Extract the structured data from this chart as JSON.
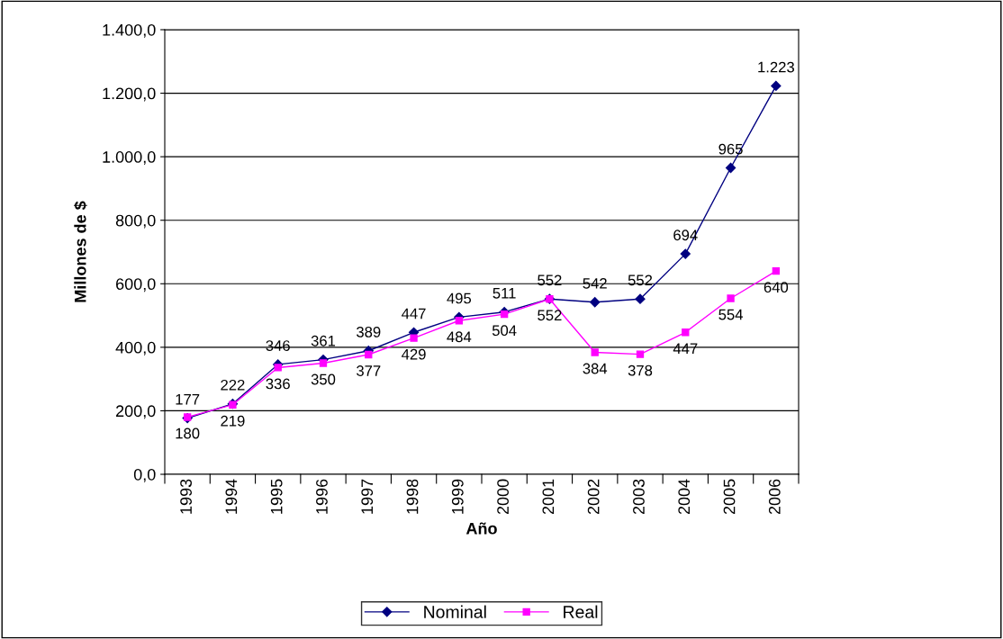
{
  "chart_data": {
    "type": "line",
    "xlabel": "Año",
    "ylabel": "Millones de $",
    "categories": [
      "1993",
      "1994",
      "1995",
      "1996",
      "1997",
      "1998",
      "1999",
      "2000",
      "2001",
      "2002",
      "2003",
      "2004",
      "2005",
      "2006"
    ],
    "series": [
      {
        "name": "Nominal",
        "color": "#000080",
        "marker": "diamond",
        "values": [
          177,
          222,
          346,
          361,
          389,
          447,
          495,
          511,
          552,
          542,
          552,
          694,
          965,
          1223
        ],
        "value_labels": [
          "177",
          "222",
          "346",
          "361",
          "389",
          "447",
          "495",
          "511",
          "552",
          "542",
          "552",
          "694",
          "965",
          "1.223"
        ]
      },
      {
        "name": "Real",
        "color": "#ff00ff",
        "marker": "square",
        "values": [
          180,
          219,
          336,
          350,
          377,
          429,
          484,
          504,
          552,
          384,
          378,
          447,
          554,
          640
        ],
        "value_labels": [
          "180",
          "219",
          "336",
          "350",
          "377",
          "429",
          "484",
          "504",
          "552",
          "384",
          "378",
          "447",
          "554",
          "640"
        ]
      }
    ],
    "ylim": [
      0,
      1400
    ],
    "yticks": [
      {
        "value": 0,
        "label": "0,0"
      },
      {
        "value": 200,
        "label": "200,0"
      },
      {
        "value": 400,
        "label": "400,0"
      },
      {
        "value": 600,
        "label": "600,0"
      },
      {
        "value": 800,
        "label": "800,0"
      },
      {
        "value": 1000,
        "label": "1.000,0"
      },
      {
        "value": 1200,
        "label": "1.200,0"
      },
      {
        "value": 1400,
        "label": "1.400,0"
      }
    ],
    "grid": "y",
    "legend": "bottom",
    "line_style": "solid"
  }
}
